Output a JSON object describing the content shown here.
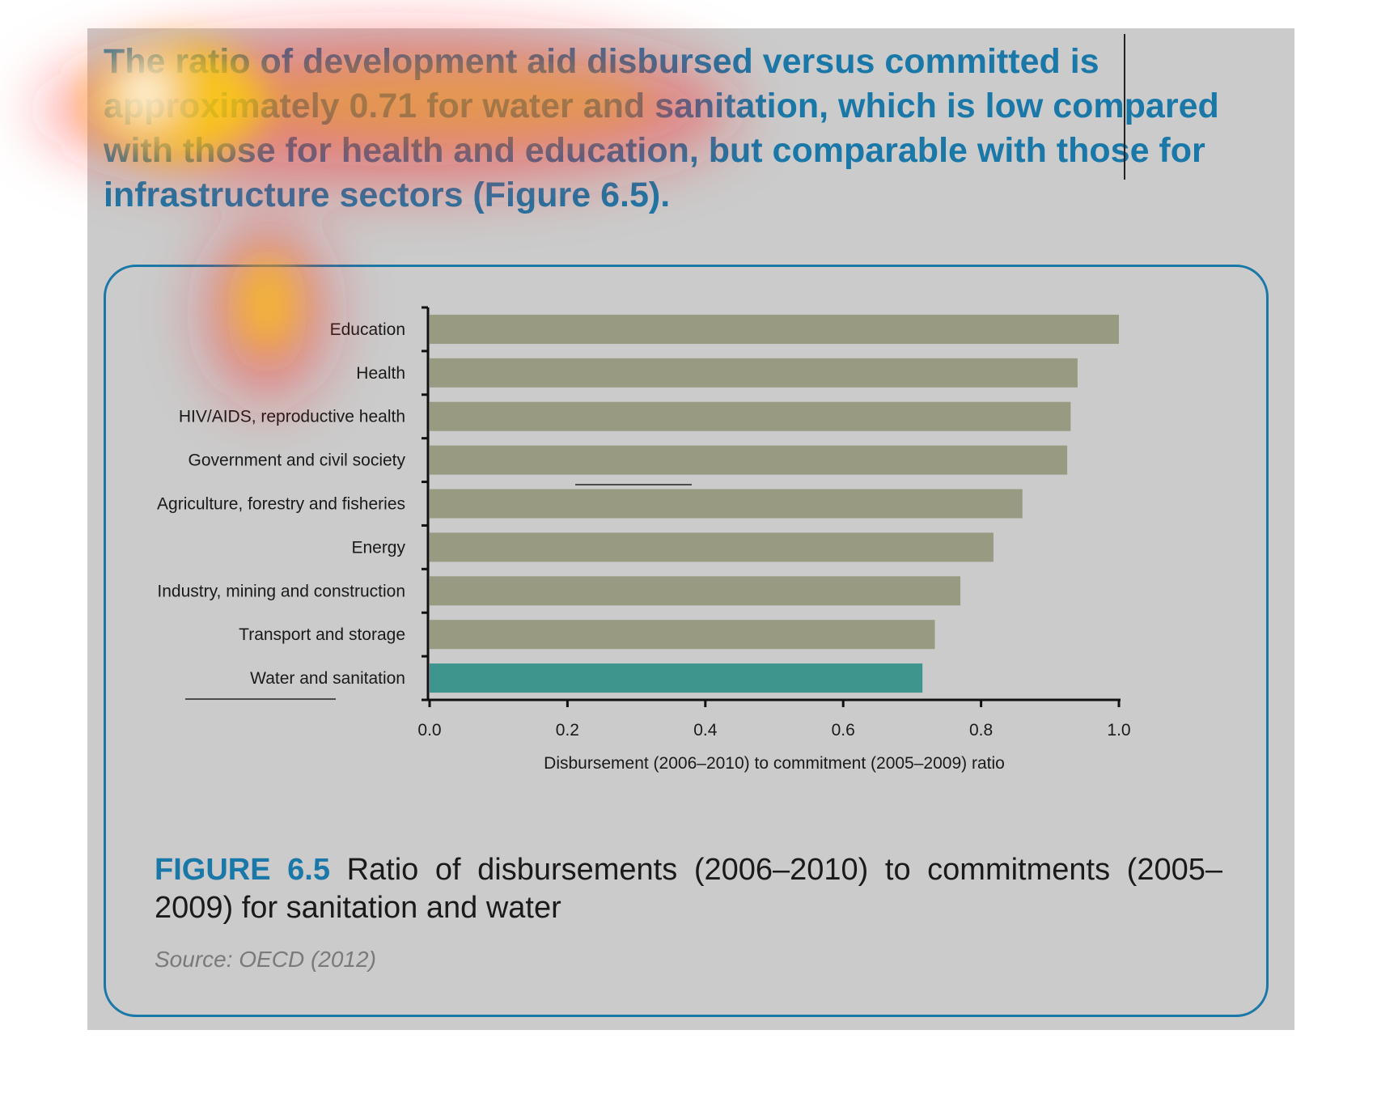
{
  "headline": "The ratio of development aid disbursed versus committed is approximately 0.71 for water and sanitation, which is low compared with those for health and education, but comparable with those for infrastructure sectors (Figure 6.5).",
  "caption": {
    "label": "FIGURE 6.5",
    "text": "Ratio of disbursements (2006–2010) to commitments (2005–2009) for sanitation and water"
  },
  "source": "Source: OECD (2012)",
  "colors": {
    "bar": "#989a82",
    "highlight_bar": "#3d958e",
    "accent": "#1a78a8"
  },
  "chart_data": {
    "type": "bar",
    "orientation": "horizontal",
    "categories": [
      "Education",
      "Health",
      "HIV/AIDS, reproductive health",
      "Government and civil society",
      "Agriculture, forestry and fisheries",
      "Energy",
      "Industry, mining and construction",
      "Transport and storage",
      "Water and sanitation"
    ],
    "values": [
      1.0,
      0.94,
      0.93,
      0.925,
      0.86,
      0.818,
      0.77,
      0.733,
      0.715
    ],
    "highlight": "Water and sanitation",
    "xlabel": "Disbursement (2006–2010) to commitment (2005–2009) ratio",
    "ylabel": "",
    "xlim": [
      0.0,
      1.0
    ],
    "xticks": [
      "0.0",
      "0.2",
      "0.4",
      "0.6",
      "0.8",
      "1.0"
    ],
    "grid": false,
    "legend": "none"
  }
}
